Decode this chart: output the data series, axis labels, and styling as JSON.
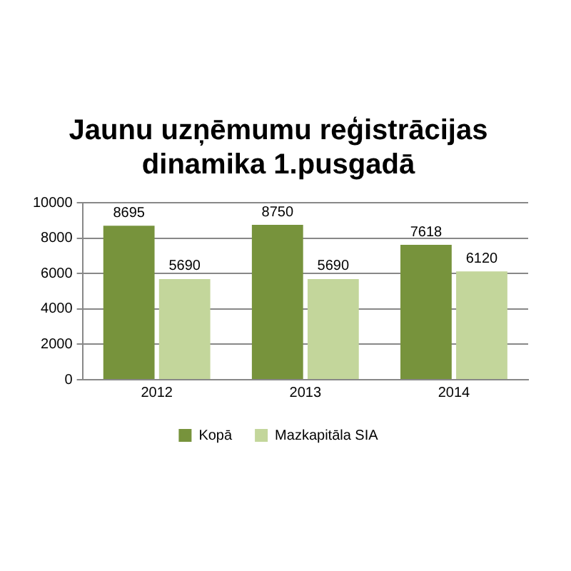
{
  "chart_data": {
    "type": "bar",
    "title": "Jaunu uzņēmumu reģistrācijas dinamika 1.pusgadā",
    "categories": [
      "2012",
      "2013",
      "2014"
    ],
    "series": [
      {
        "name": "Kopā",
        "color": "#77933c",
        "values": [
          8695,
          8750,
          7618
        ]
      },
      {
        "name": "Mazkapitāla SIA",
        "color": "#c3d69b",
        "values": [
          5690,
          5690,
          6120
        ]
      }
    ],
    "ylim": [
      0,
      10000
    ],
    "yticks": [
      0,
      2000,
      4000,
      6000,
      8000,
      10000
    ],
    "grid": "y",
    "legend": "bottom",
    "data_labels": true
  }
}
